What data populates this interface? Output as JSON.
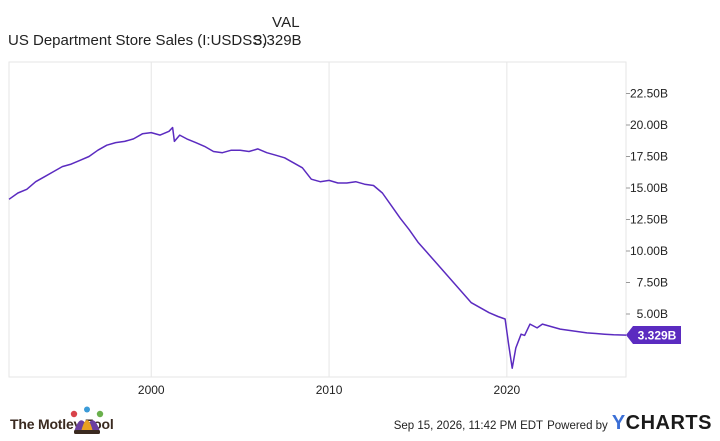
{
  "legend": {
    "header": "VAL",
    "series_name": "US Department Store Sales (I:USDSS)",
    "series_value": "3.329B"
  },
  "footer": {
    "brand": "The Motley Fool",
    "timestamp": "Sep 15, 2026, 11:42 PM EDT",
    "powered_by": "Powered by",
    "provider": "YCHARTS",
    "provider_initial": "Y",
    "provider_rest": "CHARTS"
  },
  "colors": {
    "line": "#5b2bc0",
    "grid": "#e6e6e6",
    "text": "#222222"
  },
  "chart_data": {
    "type": "line",
    "title": "",
    "xlabel": "",
    "ylabel": "",
    "x_ticks": [
      2000,
      2010,
      2020
    ],
    "y_ticks": [
      5,
      7.5,
      10,
      12.5,
      15,
      17.5,
      20,
      22.5
    ],
    "y_tick_labels": [
      "5.00B",
      "7.50B",
      "10.00B",
      "12.50B",
      "15.00B",
      "17.50B",
      "20.00B",
      "22.50B"
    ],
    "xlim": [
      1992,
      2026.7
    ],
    "ylim": [
      0,
      25
    ],
    "grid": "vertical",
    "last_value_label": "3.329B",
    "series": [
      {
        "name": "US Department Store Sales (I:USDSS)",
        "unit": "B",
        "points": [
          [
            1992.0,
            14.1
          ],
          [
            1992.5,
            14.6
          ],
          [
            1993.0,
            14.9
          ],
          [
            1993.5,
            15.5
          ],
          [
            1994.0,
            15.9
          ],
          [
            1994.5,
            16.3
          ],
          [
            1995.0,
            16.7
          ],
          [
            1995.5,
            16.9
          ],
          [
            1996.0,
            17.2
          ],
          [
            1996.5,
            17.5
          ],
          [
            1997.0,
            18.0
          ],
          [
            1997.5,
            18.4
          ],
          [
            1998.0,
            18.6
          ],
          [
            1998.5,
            18.7
          ],
          [
            1999.0,
            18.9
          ],
          [
            1999.5,
            19.3
          ],
          [
            2000.0,
            19.4
          ],
          [
            2000.5,
            19.2
          ],
          [
            2001.0,
            19.5
          ],
          [
            2001.2,
            19.8
          ],
          [
            2001.3,
            18.7
          ],
          [
            2001.6,
            19.2
          ],
          [
            2002.0,
            18.9
          ],
          [
            2002.5,
            18.6
          ],
          [
            2003.0,
            18.3
          ],
          [
            2003.5,
            17.9
          ],
          [
            2004.0,
            17.8
          ],
          [
            2004.5,
            18.0
          ],
          [
            2005.0,
            18.0
          ],
          [
            2005.5,
            17.9
          ],
          [
            2006.0,
            18.1
          ],
          [
            2006.5,
            17.8
          ],
          [
            2007.0,
            17.6
          ],
          [
            2007.5,
            17.4
          ],
          [
            2008.0,
            17.0
          ],
          [
            2008.5,
            16.6
          ],
          [
            2009.0,
            15.7
          ],
          [
            2009.5,
            15.5
          ],
          [
            2010.0,
            15.6
          ],
          [
            2010.5,
            15.4
          ],
          [
            2011.0,
            15.4
          ],
          [
            2011.5,
            15.5
          ],
          [
            2012.0,
            15.3
          ],
          [
            2012.5,
            15.2
          ],
          [
            2013.0,
            14.6
          ],
          [
            2013.5,
            13.6
          ],
          [
            2014.0,
            12.6
          ],
          [
            2014.5,
            11.7
          ],
          [
            2015.0,
            10.7
          ],
          [
            2015.5,
            9.9
          ],
          [
            2016.0,
            9.1
          ],
          [
            2016.5,
            8.3
          ],
          [
            2017.0,
            7.5
          ],
          [
            2017.5,
            6.7
          ],
          [
            2018.0,
            5.9
          ],
          [
            2018.5,
            5.5
          ],
          [
            2019.0,
            5.1
          ],
          [
            2019.5,
            4.8
          ],
          [
            2019.9,
            4.6
          ],
          [
            2020.1,
            2.6
          ],
          [
            2020.3,
            0.7
          ],
          [
            2020.5,
            2.3
          ],
          [
            2020.8,
            3.4
          ],
          [
            2021.0,
            3.3
          ],
          [
            2021.3,
            4.2
          ],
          [
            2021.7,
            3.9
          ],
          [
            2022.0,
            4.2
          ],
          [
            2022.5,
            4.0
          ],
          [
            2023.0,
            3.8
          ],
          [
            2023.5,
            3.7
          ],
          [
            2024.0,
            3.6
          ],
          [
            2024.5,
            3.5
          ],
          [
            2025.0,
            3.45
          ],
          [
            2025.5,
            3.4
          ],
          [
            2026.0,
            3.35
          ],
          [
            2026.7,
            3.329
          ]
        ]
      }
    ]
  }
}
